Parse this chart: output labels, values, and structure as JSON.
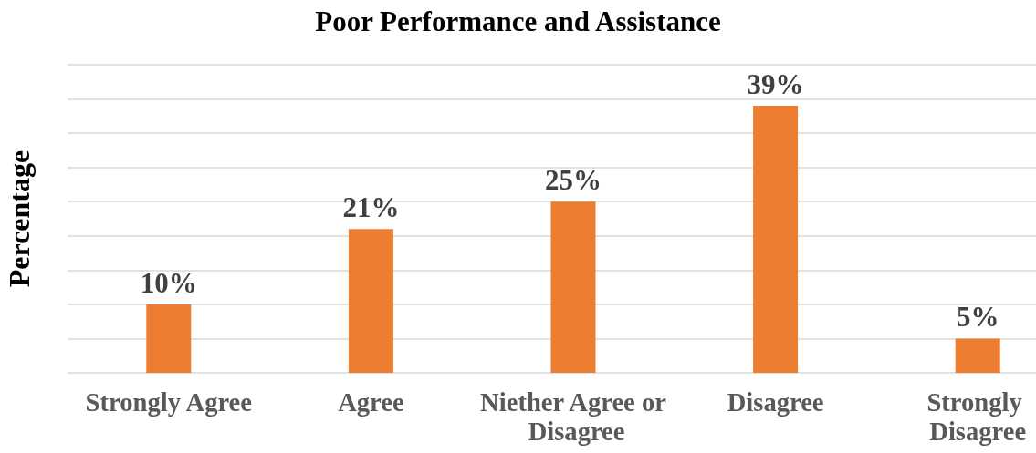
{
  "chart_data": {
    "type": "bar",
    "title": "Poor Performance and Assistance",
    "ylabel": "Percentage",
    "categories": [
      "Strongly Agree",
      "Agree",
      "Niether Agree or Disagree",
      "Disagree",
      "Strongly Disagree"
    ],
    "values": [
      10,
      21,
      25,
      39,
      5
    ],
    "value_labels": [
      "10%",
      "21%",
      "25%",
      "39%",
      "5%"
    ],
    "color": "#ed7d31",
    "ylim": [
      0,
      45
    ],
    "yticks": [
      {
        "value": 0,
        "label": null
      },
      {
        "value": 5,
        "label": null
      },
      {
        "value": 10,
        "label": null
      },
      {
        "value": 15,
        "label": null
      },
      {
        "value": 20,
        "label": null
      },
      {
        "value": 25,
        "label": null
      },
      {
        "value": 30,
        "label": null
      },
      {
        "value": 35,
        "label": null
      },
      {
        "value": 40,
        "label": null
      },
      {
        "value": 45,
        "label": null
      }
    ],
    "grid": "y",
    "tick_labels": "x"
  }
}
